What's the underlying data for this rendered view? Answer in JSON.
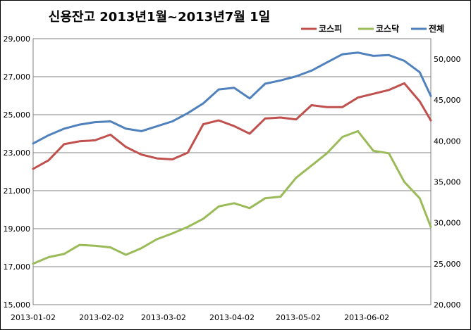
{
  "chart_data": {
    "type": "line",
    "title": "신용잔고 2013년1월~2013년7월 1일",
    "x": [
      "2013-01-02",
      "2013-01-09",
      "2013-01-16",
      "2013-01-23",
      "2013-01-30",
      "2013-02-06",
      "2013-02-13",
      "2013-02-20",
      "2013-02-27",
      "2013-03-06",
      "2013-03-13",
      "2013-03-20",
      "2013-03-27",
      "2013-04-03",
      "2013-04-10",
      "2013-04-17",
      "2013-04-24",
      "2013-05-01",
      "2013-05-08",
      "2013-05-15",
      "2013-05-22",
      "2013-05-29",
      "2013-06-05",
      "2013-06-12",
      "2013-06-19",
      "2013-06-26",
      "2013-07-01"
    ],
    "x_ticks": [
      "2013-01-02",
      "2013-02-02",
      "2013-03-02",
      "2013-04-02",
      "2013-05-02",
      "2013-06-02"
    ],
    "left_axis": {
      "ylim": [
        15000,
        29000
      ],
      "ticks": [
        "15,000",
        "17,000",
        "19,000",
        "21,000",
        "23,000",
        "25,000",
        "27,000",
        "29,000"
      ]
    },
    "right_axis": {
      "ylim": [
        20000,
        52500
      ],
      "ticks": [
        "20,000",
        "25,000",
        "30,000",
        "35,000",
        "40,000",
        "45,000",
        "50,000"
      ]
    },
    "legend_position": "top-right",
    "grid": "horizontal",
    "series": [
      {
        "name": "코스피",
        "axis": "left",
        "color": "#c0504d",
        "values": [
          22150,
          22600,
          23450,
          23600,
          23650,
          23950,
          23300,
          22900,
          22700,
          22650,
          23000,
          24500,
          24700,
          24400,
          24000,
          24800,
          24850,
          24750,
          25500,
          25400,
          25400,
          25900,
          26100,
          26300,
          26650,
          25700,
          24700
        ]
      },
      {
        "name": "코스닥",
        "axis": "right",
        "color": "#9bbb59",
        "values": [
          25000,
          25800,
          26200,
          27300,
          27200,
          27000,
          26100,
          26900,
          28000,
          28700,
          29500,
          30500,
          32000,
          32400,
          31800,
          33000,
          33200,
          35500,
          37000,
          38500,
          40500,
          41200,
          38800,
          38500,
          35000,
          33000,
          29500
        ]
      },
      {
        "name": "전체",
        "axis": "right",
        "color": "#4f81bd",
        "values": [
          39700,
          40700,
          41500,
          42000,
          42300,
          42400,
          41500,
          41200,
          41800,
          42400,
          43400,
          44600,
          46300,
          46500,
          45200,
          47000,
          47400,
          47900,
          48600,
          49600,
          50600,
          50800,
          50400,
          50500,
          49800,
          48400,
          45500
        ]
      }
    ]
  }
}
